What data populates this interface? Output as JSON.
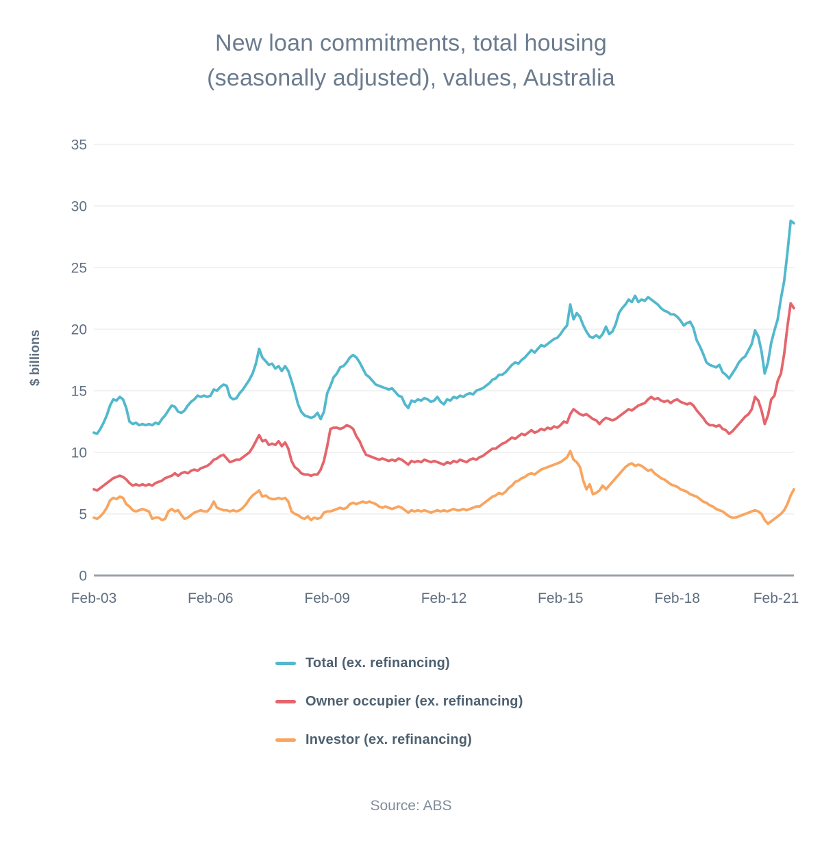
{
  "title": {
    "line1": "New loan commitments, total housing",
    "line2": "(seasonally adjusted), values, Australia"
  },
  "source": "Source: ABS",
  "chart_data": {
    "type": "line",
    "title": "New loan commitments, total housing (seasonally adjusted), values, Australia",
    "ylabel": "$ billions",
    "ylim": [
      0,
      35
    ],
    "y_ticks": [
      0,
      5,
      10,
      15,
      20,
      25,
      30,
      35
    ],
    "grid": "horizontal",
    "legend_position": "bottom-left-of-center",
    "x_frequency": "monthly",
    "x_range": [
      "Feb-03",
      "Feb-21"
    ],
    "xtick_labels": [
      "Feb-03",
      "Feb-06",
      "Feb-09",
      "Feb-12",
      "Feb-15",
      "Feb-18",
      "Feb-21"
    ],
    "xtick_month_indices": [
      0,
      36,
      72,
      108,
      144,
      180,
      216
    ],
    "colors": {
      "grid": "#e9eaec",
      "zero_line": "#9aa1a9",
      "axis_text": "#5f6e80",
      "title_text": "#6b7b8e"
    },
    "series": [
      {
        "name": "Total (ex. refinancing)",
        "color": "#52b8cd",
        "values": [
          11.6,
          11.5,
          11.9,
          12.4,
          13.0,
          13.8,
          14.3,
          14.2,
          14.5,
          14.3,
          13.6,
          12.5,
          12.3,
          12.4,
          12.2,
          12.3,
          12.2,
          12.3,
          12.2,
          12.4,
          12.3,
          12.7,
          13.0,
          13.4,
          13.8,
          13.7,
          13.3,
          13.2,
          13.4,
          13.8,
          14.1,
          14.3,
          14.6,
          14.5,
          14.6,
          14.5,
          14.6,
          15.1,
          15.0,
          15.3,
          15.5,
          15.4,
          14.5,
          14.3,
          14.4,
          14.8,
          15.1,
          15.5,
          15.9,
          16.4,
          17.2,
          18.4,
          17.7,
          17.4,
          17.1,
          17.2,
          16.8,
          17.0,
          16.6,
          17.0,
          16.6,
          15.8,
          14.9,
          13.9,
          13.3,
          13.0,
          12.9,
          12.8,
          12.9,
          13.2,
          12.7,
          13.3,
          14.8,
          15.4,
          16.1,
          16.4,
          16.9,
          17.0,
          17.3,
          17.7,
          17.9,
          17.7,
          17.3,
          16.8,
          16.3,
          16.1,
          15.8,
          15.5,
          15.4,
          15.3,
          15.2,
          15.1,
          15.2,
          14.9,
          14.6,
          14.5,
          13.9,
          13.6,
          14.2,
          14.1,
          14.3,
          14.2,
          14.4,
          14.3,
          14.1,
          14.2,
          14.5,
          14.1,
          13.9,
          14.3,
          14.2,
          14.5,
          14.4,
          14.6,
          14.5,
          14.7,
          14.8,
          14.7,
          15.0,
          15.1,
          15.2,
          15.4,
          15.6,
          15.9,
          16.0,
          16.3,
          16.3,
          16.5,
          16.8,
          17.1,
          17.3,
          17.2,
          17.5,
          17.7,
          18.0,
          18.3,
          18.1,
          18.4,
          18.7,
          18.6,
          18.8,
          19.0,
          19.2,
          19.3,
          19.6,
          20.0,
          20.3,
          22.0,
          20.8,
          21.3,
          21.0,
          20.3,
          19.8,
          19.4,
          19.3,
          19.5,
          19.3,
          19.6,
          20.2,
          19.6,
          19.8,
          20.4,
          21.3,
          21.7,
          22.0,
          22.4,
          22.2,
          22.7,
          22.2,
          22.4,
          22.3,
          22.6,
          22.4,
          22.2,
          22.0,
          21.7,
          21.5,
          21.4,
          21.2,
          21.2,
          21.0,
          20.7,
          20.3,
          20.5,
          20.6,
          20.1,
          19.1,
          18.6,
          18.0,
          17.3,
          17.1,
          17.0,
          16.9,
          17.1,
          16.5,
          16.3,
          16.0,
          16.4,
          16.8,
          17.3,
          17.6,
          17.8,
          18.3,
          18.8,
          19.9,
          19.4,
          18.2,
          16.4,
          17.3,
          18.9,
          19.9,
          20.8,
          22.5,
          23.9,
          26.2,
          28.8,
          28.6
        ]
      },
      {
        "name": "Owner occupier (ex. refinancing)",
        "color": "#e4656b",
        "values": [
          7.0,
          6.9,
          7.1,
          7.3,
          7.5,
          7.7,
          7.9,
          8.0,
          8.1,
          8.0,
          7.8,
          7.5,
          7.3,
          7.4,
          7.3,
          7.4,
          7.3,
          7.4,
          7.3,
          7.5,
          7.6,
          7.7,
          7.9,
          8.0,
          8.1,
          8.3,
          8.1,
          8.3,
          8.4,
          8.3,
          8.5,
          8.6,
          8.5,
          8.7,
          8.8,
          8.9,
          9.1,
          9.4,
          9.5,
          9.7,
          9.8,
          9.5,
          9.2,
          9.3,
          9.4,
          9.4,
          9.6,
          9.8,
          10.0,
          10.4,
          10.9,
          11.4,
          10.9,
          11.0,
          10.6,
          10.7,
          10.6,
          10.9,
          10.5,
          10.8,
          10.3,
          9.3,
          8.8,
          8.6,
          8.3,
          8.2,
          8.2,
          8.1,
          8.2,
          8.2,
          8.6,
          9.3,
          10.5,
          11.9,
          12.0,
          12.0,
          11.9,
          12.0,
          12.2,
          12.1,
          11.9,
          11.3,
          10.9,
          10.3,
          9.8,
          9.7,
          9.6,
          9.5,
          9.4,
          9.5,
          9.4,
          9.3,
          9.4,
          9.3,
          9.5,
          9.4,
          9.2,
          9.0,
          9.3,
          9.2,
          9.3,
          9.2,
          9.4,
          9.3,
          9.2,
          9.3,
          9.2,
          9.1,
          9.0,
          9.2,
          9.1,
          9.3,
          9.2,
          9.4,
          9.3,
          9.2,
          9.4,
          9.5,
          9.4,
          9.6,
          9.7,
          9.9,
          10.1,
          10.3,
          10.3,
          10.5,
          10.7,
          10.8,
          11.0,
          11.2,
          11.1,
          11.3,
          11.5,
          11.4,
          11.6,
          11.8,
          11.6,
          11.7,
          11.9,
          11.8,
          12.0,
          11.9,
          12.1,
          12.0,
          12.2,
          12.5,
          12.4,
          13.1,
          13.5,
          13.3,
          13.1,
          13.0,
          13.1,
          12.9,
          12.7,
          12.6,
          12.3,
          12.6,
          12.8,
          12.7,
          12.6,
          12.7,
          12.9,
          13.1,
          13.3,
          13.5,
          13.4,
          13.6,
          13.8,
          13.9,
          14.0,
          14.3,
          14.5,
          14.3,
          14.4,
          14.2,
          14.1,
          14.2,
          14.0,
          14.2,
          14.3,
          14.1,
          14.0,
          13.9,
          14.0,
          13.8,
          13.4,
          13.1,
          12.8,
          12.4,
          12.2,
          12.2,
          12.1,
          12.2,
          11.9,
          11.8,
          11.5,
          11.7,
          12.0,
          12.3,
          12.6,
          12.9,
          13.1,
          13.5,
          14.5,
          14.2,
          13.4,
          12.3,
          13.0,
          14.3,
          14.6,
          15.8,
          16.4,
          18.0,
          20.2,
          22.1,
          21.7
        ]
      },
      {
        "name": "Investor (ex. refinancing)",
        "color": "#f8a55f",
        "values": [
          4.7,
          4.6,
          4.8,
          5.1,
          5.5,
          6.1,
          6.3,
          6.2,
          6.4,
          6.3,
          5.8,
          5.6,
          5.3,
          5.2,
          5.3,
          5.4,
          5.3,
          5.2,
          4.6,
          4.7,
          4.7,
          4.5,
          4.6,
          5.2,
          5.4,
          5.2,
          5.3,
          4.9,
          4.6,
          4.7,
          4.9,
          5.1,
          5.2,
          5.3,
          5.2,
          5.2,
          5.5,
          6.0,
          5.5,
          5.4,
          5.3,
          5.3,
          5.2,
          5.3,
          5.2,
          5.3,
          5.5,
          5.8,
          6.2,
          6.5,
          6.7,
          6.9,
          6.4,
          6.5,
          6.3,
          6.2,
          6.2,
          6.3,
          6.2,
          6.3,
          6.0,
          5.2,
          5.0,
          4.9,
          4.7,
          4.6,
          4.8,
          4.5,
          4.7,
          4.6,
          4.7,
          5.1,
          5.2,
          5.2,
          5.3,
          5.4,
          5.5,
          5.4,
          5.5,
          5.8,
          5.9,
          5.8,
          5.9,
          6.0,
          5.9,
          6.0,
          5.9,
          5.8,
          5.6,
          5.5,
          5.6,
          5.5,
          5.4,
          5.5,
          5.6,
          5.5,
          5.3,
          5.1,
          5.3,
          5.2,
          5.3,
          5.2,
          5.3,
          5.2,
          5.1,
          5.2,
          5.3,
          5.2,
          5.3,
          5.2,
          5.3,
          5.4,
          5.3,
          5.3,
          5.4,
          5.3,
          5.4,
          5.5,
          5.6,
          5.6,
          5.8,
          6.0,
          6.2,
          6.4,
          6.5,
          6.7,
          6.6,
          6.8,
          7.1,
          7.3,
          7.6,
          7.7,
          7.9,
          8.0,
          8.2,
          8.3,
          8.2,
          8.4,
          8.6,
          8.7,
          8.8,
          8.9,
          9.0,
          9.1,
          9.2,
          9.4,
          9.6,
          10.1,
          9.4,
          9.2,
          8.8,
          7.7,
          7.0,
          7.4,
          6.6,
          6.7,
          6.9,
          7.3,
          7.0,
          7.3,
          7.6,
          7.9,
          8.2,
          8.5,
          8.8,
          9.0,
          9.1,
          8.9,
          9.0,
          8.9,
          8.7,
          8.5,
          8.6,
          8.3,
          8.1,
          7.9,
          7.8,
          7.6,
          7.4,
          7.3,
          7.2,
          7.0,
          6.9,
          6.8,
          6.6,
          6.5,
          6.4,
          6.2,
          6.0,
          5.9,
          5.7,
          5.6,
          5.4,
          5.3,
          5.2,
          5.0,
          4.8,
          4.7,
          4.7,
          4.8,
          4.9,
          5.0,
          5.1,
          5.2,
          5.3,
          5.2,
          5.0,
          4.5,
          4.2,
          4.4,
          4.6,
          4.8,
          5.0,
          5.3,
          5.8,
          6.5,
          7.0
        ]
      }
    ]
  }
}
